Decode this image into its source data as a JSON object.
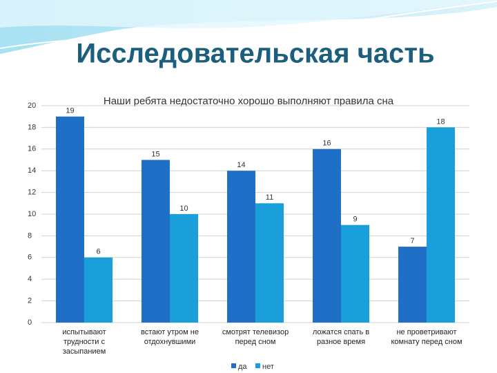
{
  "slide_title": "Исследовательская часть",
  "chart_data": {
    "type": "bar",
    "title": "Наши ребята недостаточно хорошо выполняют правила сна",
    "categories": [
      "испытывают трудности с засыпанием",
      "встают утром не отдохнувшими",
      "смотрят телевизор перед сном",
      "ложатся спать в разное время",
      "не проветривают комнату перед сном"
    ],
    "series": [
      {
        "name": "да",
        "color": "#1f6fc6",
        "values": [
          19,
          15,
          14,
          16,
          7
        ]
      },
      {
        "name": "нет",
        "color": "#1a9fdb",
        "values": [
          6,
          10,
          11,
          9,
          18
        ]
      }
    ],
    "ylim": [
      0,
      20
    ],
    "yticks": [
      0,
      2,
      4,
      6,
      8,
      10,
      12,
      14,
      16,
      18,
      20
    ],
    "grid": true,
    "legend": "bottom"
  }
}
